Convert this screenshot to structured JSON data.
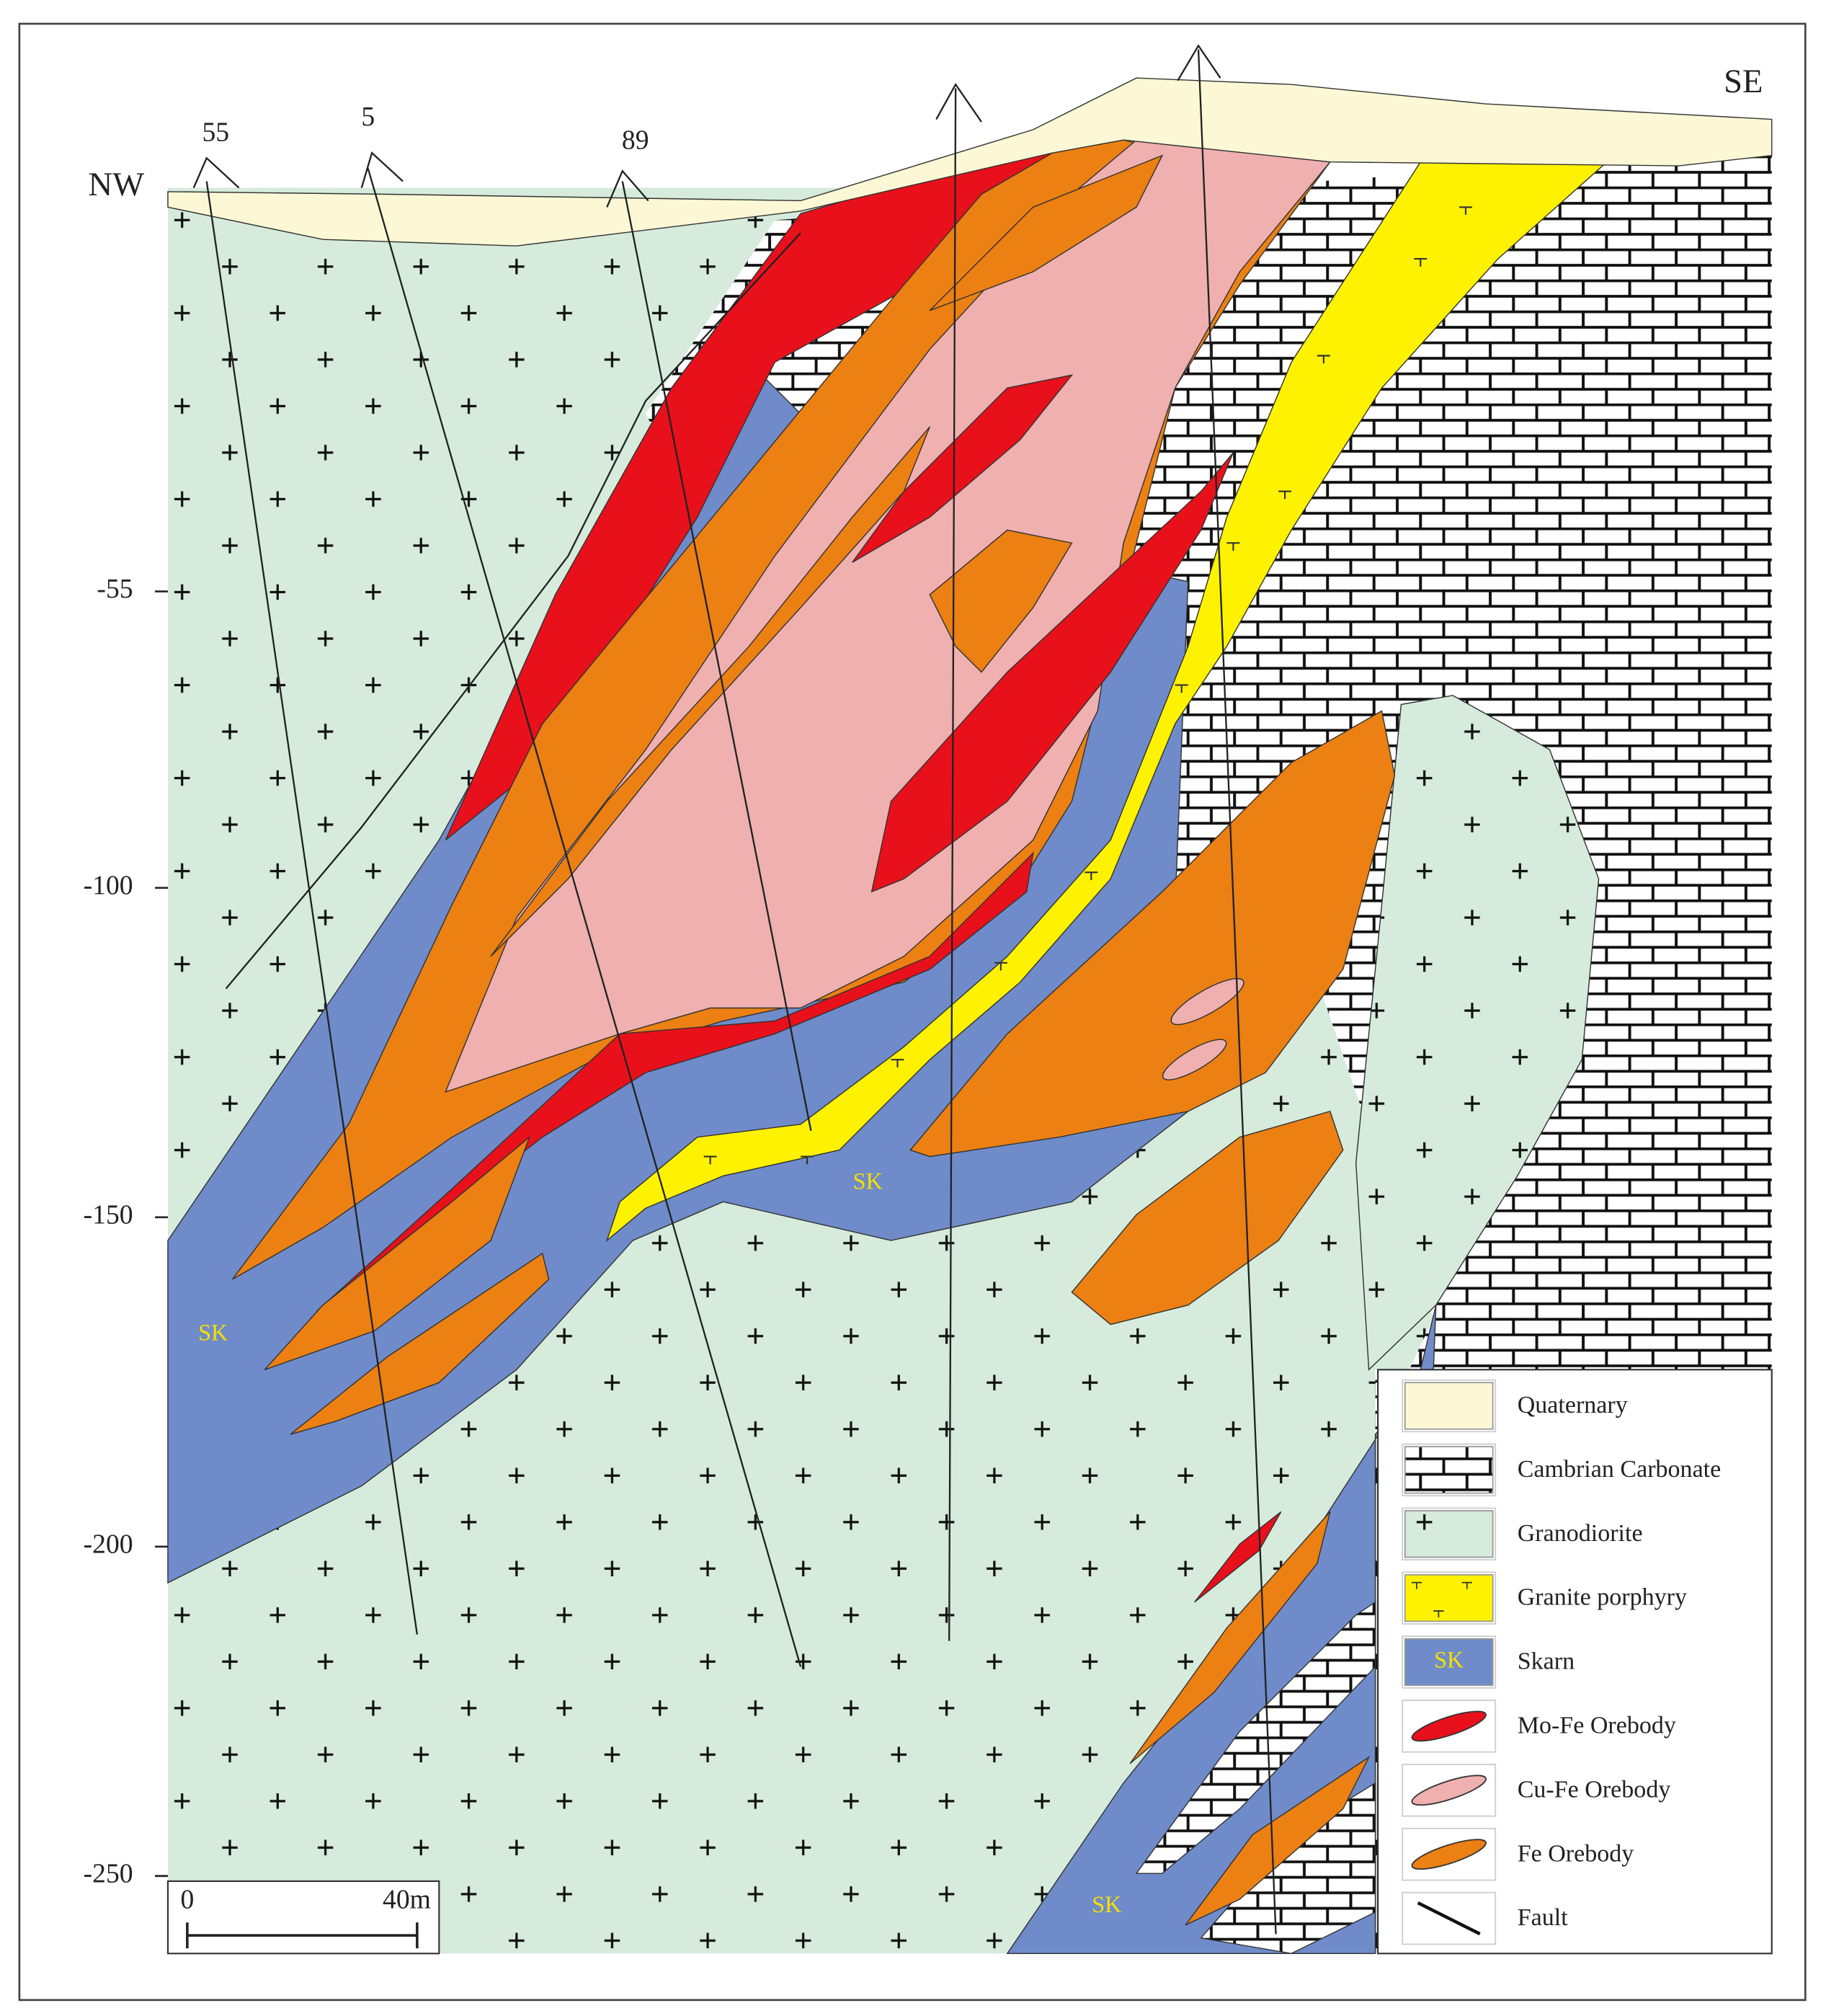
{
  "section": {
    "directions": {
      "left": "NW",
      "right": "SE"
    },
    "drill_holes": [
      "55",
      "5",
      "89"
    ],
    "depth_ticks": [
      -55,
      -100,
      -150,
      -200,
      -250
    ],
    "rock_labels": [
      "SK",
      "SK",
      "SK"
    ],
    "scale_bar": {
      "start": "0",
      "end": "40m"
    }
  },
  "legend": [
    {
      "label": "Quaternary"
    },
    {
      "label": "Cambrian Carbonate"
    },
    {
      "label": "Granodiorite"
    },
    {
      "label": "Granite porphyry"
    },
    {
      "label": "Skarn",
      "symbol": "SK"
    },
    {
      "label": "Mo-Fe Orebody"
    },
    {
      "label": "Cu-Fe Orebody"
    },
    {
      "label": "Fe Orebody"
    },
    {
      "label": "Fault"
    }
  ]
}
